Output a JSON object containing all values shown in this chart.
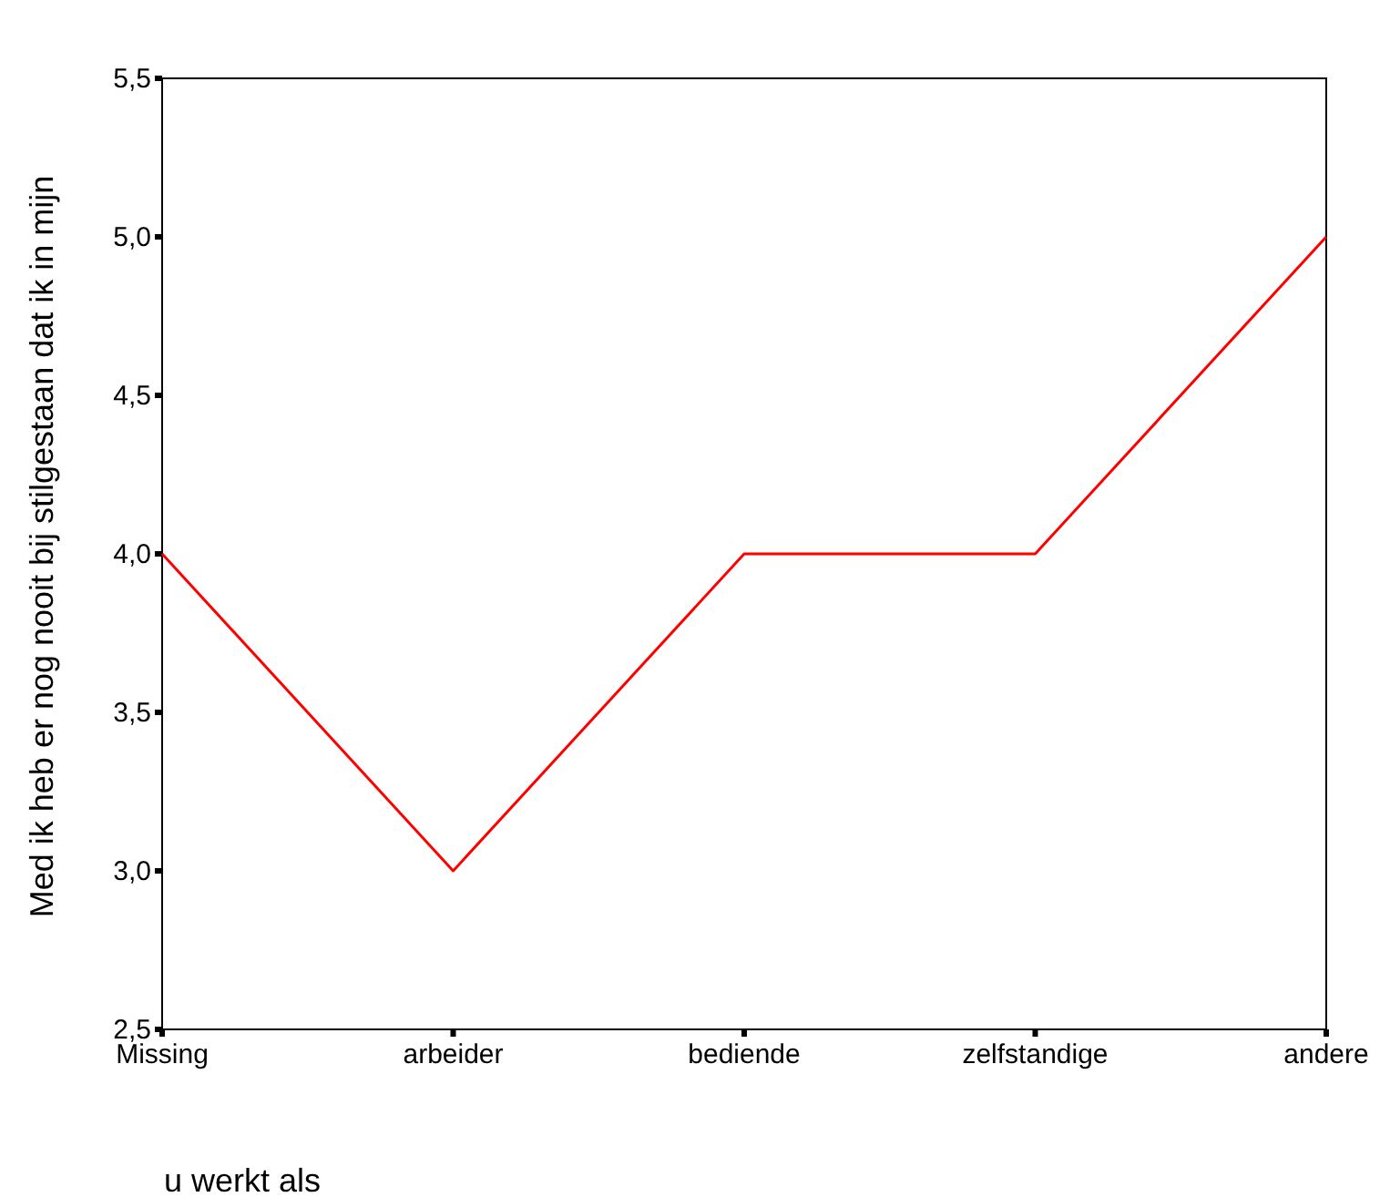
{
  "chart_data": {
    "type": "line",
    "xlabel": "u werkt als",
    "ylabel": "Med ik heb er nog nooit bij stilgestaan dat ik in mijn",
    "categories": [
      "Missing",
      "arbeider",
      "bediende",
      "zelfstandige",
      "andere"
    ],
    "series": [
      {
        "color": "#ff0000",
        "values": [
          4,
          3,
          4,
          4,
          5
        ]
      }
    ],
    "ylim": [
      2.5,
      5.5
    ],
    "yticks": [
      {
        "value": 2.5,
        "label": "2,5"
      },
      {
        "value": 3,
        "label": "3,0"
      },
      {
        "value": 3.5,
        "label": "3,5"
      },
      {
        "value": 4,
        "label": "4,0"
      },
      {
        "value": 4.5,
        "label": "4,5"
      },
      {
        "value": 5,
        "label": "5,0"
      },
      {
        "value": 5.5,
        "label": "5,5"
      }
    ],
    "grid": false
  }
}
